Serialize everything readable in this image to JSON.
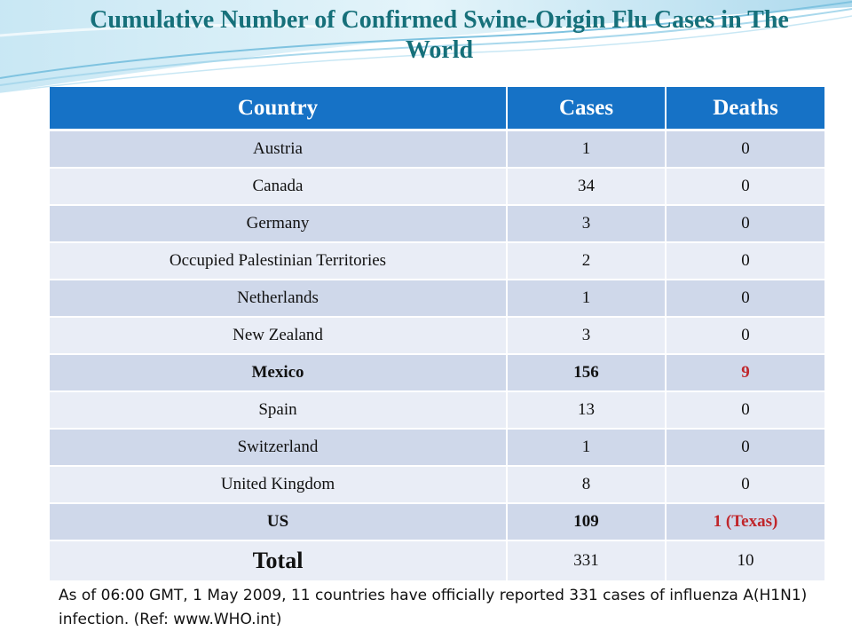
{
  "slide": {
    "title": "Cumulative Number of Confirmed Swine-Origin Flu Cases in The World",
    "note": "As of 06:00 GMT, 1 May 2009, 11 countries have officially reported 331 cases of influenza A(H1N1) infection. (Ref: www.WHO.int)"
  },
  "table": {
    "headers": [
      "Country",
      "Cases",
      "Deaths"
    ],
    "rows": [
      [
        "Austria",
        "1",
        "0"
      ],
      [
        "Canada",
        "34",
        "0"
      ],
      [
        "Germany",
        "3",
        "0"
      ],
      [
        "Occupied Palestinian Territories",
        "2",
        "0"
      ],
      [
        "Netherlands",
        "1",
        "0"
      ],
      [
        "New Zealand",
        "3",
        "0"
      ],
      [
        "Mexico",
        "156",
        "9"
      ],
      [
        "Spain",
        "13",
        "0"
      ],
      [
        "Switzerland",
        "1",
        "0"
      ],
      [
        "United Kingdom",
        "8",
        "0"
      ],
      [
        "US",
        "109",
        "1 (Texas)"
      ]
    ],
    "total": [
      "Total",
      "331",
      "10"
    ]
  },
  "colors": {
    "title": "#16707a",
    "header_bg": "#1672c6",
    "row_odd": "#cfd8ea",
    "row_even": "#e9edf6",
    "highlight_red": "#c0262b"
  }
}
